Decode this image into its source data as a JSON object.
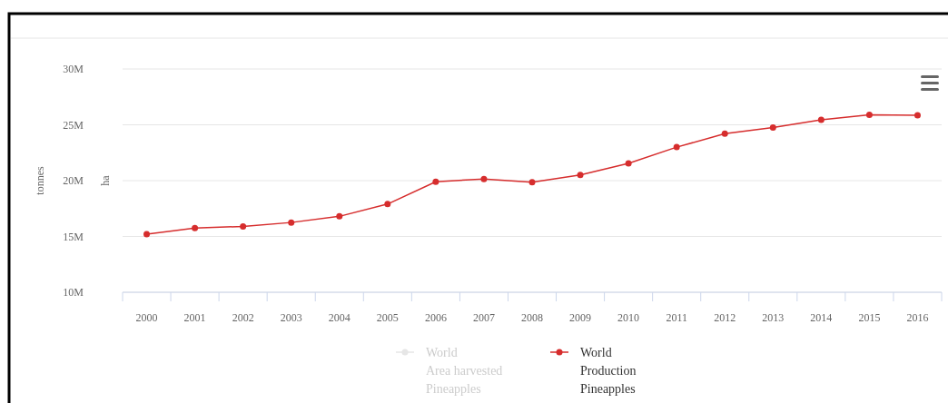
{
  "chart_data": {
    "type": "line",
    "xlabel": null,
    "ylabel": "tonnes",
    "y2label": "ha",
    "categories": [
      "2000",
      "2001",
      "2002",
      "2003",
      "2004",
      "2005",
      "2006",
      "2007",
      "2008",
      "2009",
      "2010",
      "2011",
      "2012",
      "2013",
      "2014",
      "2015",
      "2016"
    ],
    "series": [
      {
        "name": "World\nArea harvested\nPineapples",
        "color": "#e6e6e6",
        "values": [
          null,
          null,
          null,
          null,
          null,
          null,
          null,
          null,
          null,
          null,
          null,
          null,
          null,
          null,
          null,
          null,
          null
        ]
      },
      {
        "name": "World\nProduction\nPineapples",
        "color": "#d62d2d",
        "values": [
          15.2,
          15.75,
          15.9,
          16.25,
          16.8,
          17.9,
          19.9,
          20.15,
          19.85,
          20.5,
          21.55,
          23.0,
          24.2,
          24.75,
          25.45,
          25.9,
          25.85
        ]
      }
    ],
    "ylim": [
      10,
      30
    ],
    "yticks": [
      {
        "value": 10,
        "label": "10M"
      },
      {
        "value": 15,
        "label": "15M"
      },
      {
        "value": 20,
        "label": "20M"
      },
      {
        "value": 25,
        "label": "25M"
      },
      {
        "value": 30,
        "label": "30M"
      }
    ],
    "grid": "y",
    "legend": "bottom",
    "marker": "circle",
    "line_style": "solid"
  }
}
